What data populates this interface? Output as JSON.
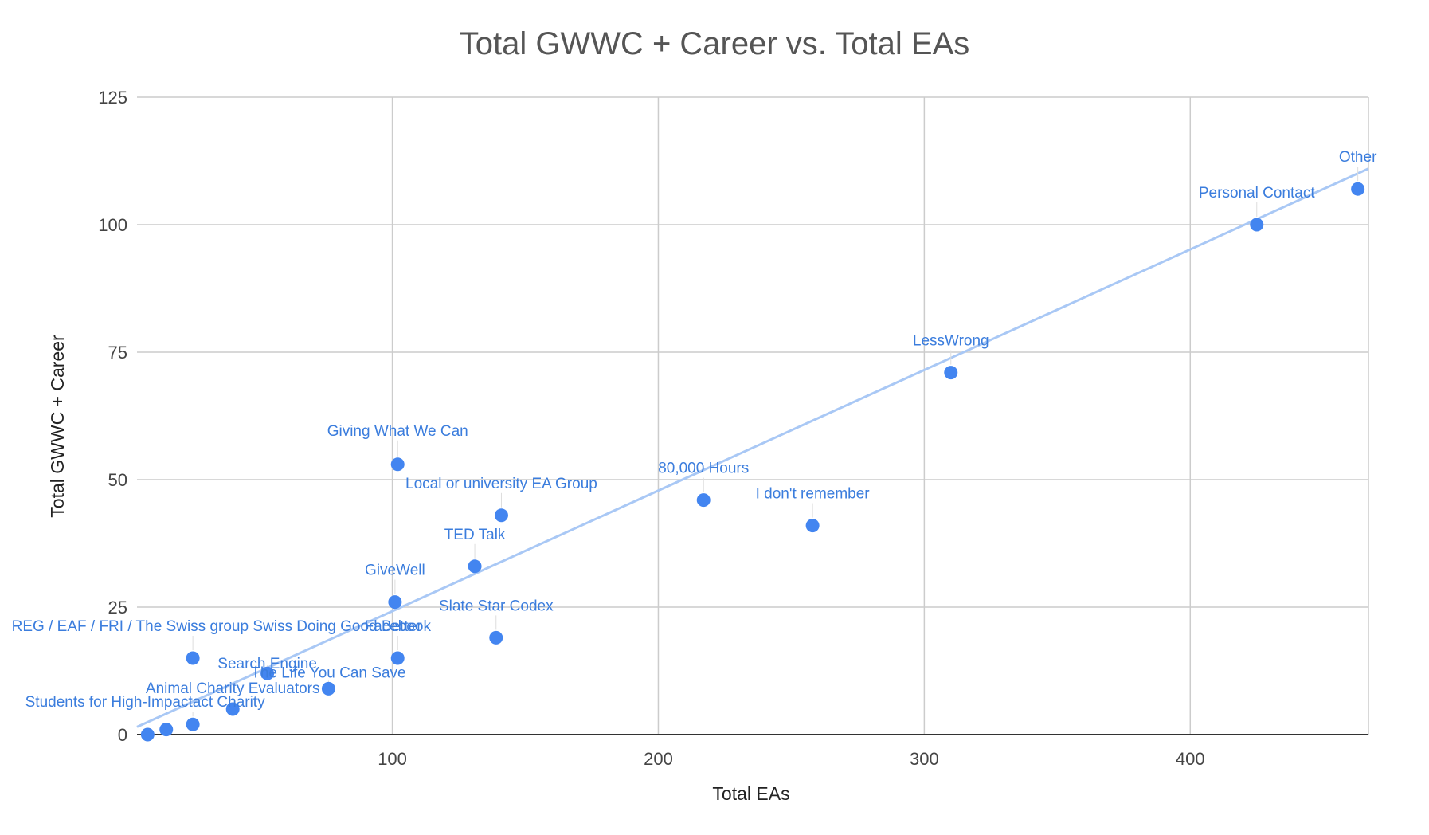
{
  "chart_data": {
    "type": "scatter",
    "title": "Total GWWC + Career vs. Total EAs",
    "xlabel": "Total EAs",
    "ylabel": "Total GWWC + Career",
    "xlim": [
      4,
      467
    ],
    "ylim": [
      0,
      125
    ],
    "xticks": [
      100,
      200,
      300,
      400
    ],
    "yticks": [
      0,
      25,
      50,
      75,
      100,
      125
    ],
    "grid": true,
    "legend": "none",
    "colors": {
      "point": "#4385f0",
      "trendline": "#a9c8f5",
      "label": "#3b7ddd"
    },
    "trendline": {
      "type": "linear",
      "from": [
        4,
        1.5
      ],
      "to": [
        467,
        111
      ]
    },
    "points": [
      {
        "label": "Other",
        "x": 463,
        "y": 107
      },
      {
        "label": "Personal Contact",
        "x": 425,
        "y": 100
      },
      {
        "label": "LessWrong",
        "x": 310,
        "y": 71
      },
      {
        "label": "Giving What We Can",
        "x": 102,
        "y": 53
      },
      {
        "label": "Local or university EA Group",
        "x": 141,
        "y": 43
      },
      {
        "label": "80,000 Hours",
        "x": 217,
        "y": 46
      },
      {
        "label": "I don't remember",
        "x": 258,
        "y": 41
      },
      {
        "label": "TED Talk",
        "x": 131,
        "y": 33
      },
      {
        "label": "GiveWell",
        "x": 101,
        "y": 26
      },
      {
        "label": "Slate Star Codex",
        "x": 139,
        "y": 19
      },
      {
        "label": "REG / EAF / FRI / The Swiss group Swiss Doing Good Better",
        "x": 25,
        "y": 15
      },
      {
        "label": "Search Engine",
        "x": 53,
        "y": 12
      },
      {
        "label": "Facebook",
        "x": 102,
        "y": 15
      },
      {
        "label": "The Life You Can Save",
        "x": 76,
        "y": 9
      },
      {
        "label": "Animal Charity Evaluators",
        "x": 40,
        "y": 5
      },
      {
        "label": "Students for High-Impactact Charity",
        "x": 25,
        "y": 2
      },
      {
        "label": "",
        "x": 15,
        "y": 1
      },
      {
        "label": "",
        "x": 8,
        "y": 0
      }
    ]
  }
}
